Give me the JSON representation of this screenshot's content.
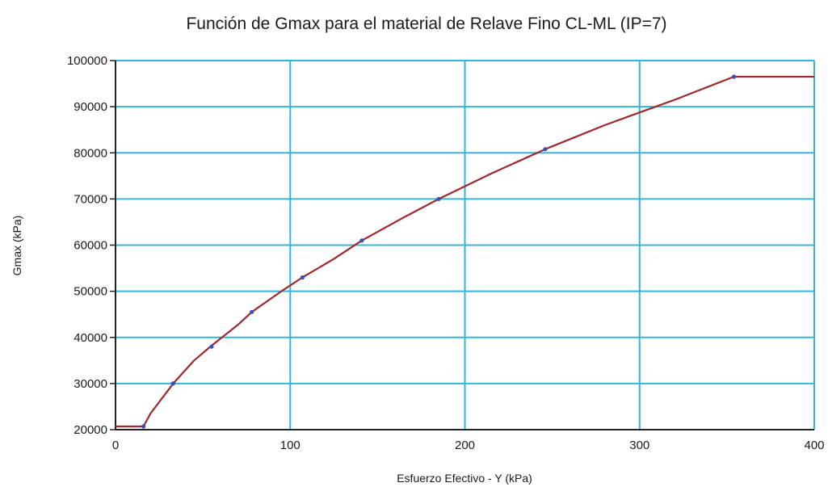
{
  "chart_data": {
    "type": "line",
    "title": "Función de Gmax para el material de Relave Fino CL-ML (IP=7)",
    "xlabel": "Esfuerzo Efectivo - Y (kPa)",
    "ylabel": "Gmax (kPa)",
    "xlim": [
      0,
      400
    ],
    "ylim": [
      20000,
      100000
    ],
    "xticks": [
      0,
      100,
      200,
      300,
      400
    ],
    "yticks": [
      20000,
      30000,
      40000,
      50000,
      60000,
      70000,
      80000,
      90000,
      100000
    ],
    "grid": true,
    "series": [
      {
        "color": "#a0282c",
        "x": [
          0,
          16,
          20,
          33,
          45,
          55,
          70,
          78,
          95,
          107,
          125,
          141,
          165,
          185,
          215,
          246,
          280,
          320,
          354,
          380,
          400
        ],
        "y": [
          20700,
          20700,
          23500,
          30000,
          35000,
          38200,
          42700,
          45500,
          50000,
          53000,
          57000,
          61000,
          66000,
          70000,
          75500,
          80800,
          86000,
          91500,
          96500,
          96500,
          96500
        ]
      }
    ],
    "markers": {
      "color": "#3a4fb8",
      "x": [
        16,
        33,
        55,
        78,
        107,
        141,
        185,
        246,
        354
      ],
      "y": [
        20700,
        30000,
        38000,
        45500,
        53000,
        61000,
        70000,
        80800,
        96500
      ]
    }
  }
}
